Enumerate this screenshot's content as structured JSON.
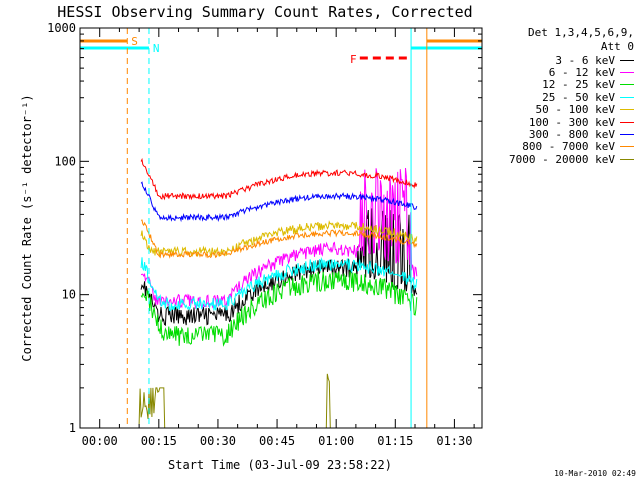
{
  "chart_data": {
    "type": "line",
    "title": "HESSI Observing Summary Count Rates, Corrected",
    "xlabel": "Start Time (03-Jul-09 23:58:22)",
    "ylabel": "Corrected Count Rate (s⁻¹ detector⁻¹)",
    "ylog": true,
    "ylim": [
      1,
      1000
    ],
    "xlim_minutes": [
      -5,
      97
    ],
    "x_ticks": [
      "00:00",
      "00:15",
      "00:30",
      "00:45",
      "01:00",
      "01:15",
      "01:30"
    ],
    "y_ticks": [
      "1",
      "10",
      "100",
      "1000"
    ],
    "legend_header": [
      "Det 1,3,4,5,6,9,",
      "Att 0"
    ],
    "series": [
      {
        "name": "3 - 6 keV",
        "color": "#000000"
      },
      {
        "name": "6 - 12 keV",
        "color": "#ff00ff"
      },
      {
        "name": "12 - 25 keV",
        "color": "#00dd00"
      },
      {
        "name": "25 - 50 keV",
        "color": "#00ffff"
      },
      {
        "name": "50 - 100 keV",
        "color": "#ddbb00"
      },
      {
        "name": "100 - 300 keV",
        "color": "#ff0000"
      },
      {
        "name": "300 - 800 keV",
        "color": "#0000ff"
      },
      {
        "name": "800 - 7000 keV",
        "color": "#ff8800"
      },
      {
        "name": "7000 - 20000 keV",
        "color": "#888800"
      }
    ],
    "annotations": [
      {
        "text": "S",
        "color": "#ff8800"
      },
      {
        "text": "N",
        "color": "#00ffff"
      },
      {
        "text": "F",
        "color": "#ff0000"
      }
    ]
  },
  "footer": {
    "timestamp": "10-Mar-2010 02:49"
  }
}
